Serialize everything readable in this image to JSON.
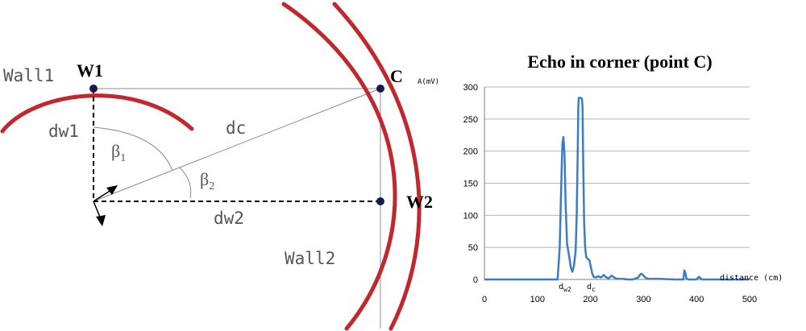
{
  "diagram": {
    "wall1_label": "Wall1",
    "wall2_label": "Wall2",
    "w1_label": "W1",
    "w2_label": "W2",
    "c_label": "C",
    "dw1_label": "dw1",
    "dw2_label": "dw2",
    "dc_label": "dc",
    "beta1_symbol": "β",
    "beta1_sub": "1",
    "beta2_symbol": "β",
    "beta2_sub": "2"
  },
  "chart_data": {
    "type": "line",
    "title": "Echo in corner (point C)",
    "ylabel": "A(mV)",
    "xlabel": "distance (cm)",
    "xlim": [
      0,
      500
    ],
    "ylim": [
      0,
      300
    ],
    "xticks": [
      0,
      100,
      200,
      300,
      400,
      500
    ],
    "yticks": [
      0,
      50,
      100,
      150,
      200,
      250,
      300
    ],
    "grid": "horizontal",
    "color": "#3a7dc4",
    "markers": [
      {
        "letter": "d",
        "sub": "w2"
      },
      {
        "letter": "d",
        "sub": "c"
      }
    ],
    "series": [
      {
        "x": [
          0,
          138,
          142,
          145,
          147,
          149,
          151,
          153,
          156,
          160,
          163,
          166,
          169,
          172,
          174,
          176,
          177,
          178,
          180,
          182,
          184,
          185,
          186,
          188,
          190,
          192,
          195,
          198,
          200,
          203,
          206,
          210,
          215,
          220,
          225,
          230,
          235,
          240,
          245,
          250,
          260,
          270,
          280,
          290,
          293,
          296,
          299,
          302,
          305,
          310,
          330,
          360,
          375,
          377,
          379,
          381,
          385,
          400,
          403,
          405,
          407,
          410,
          420,
          500
        ],
        "y": [
          0,
          0,
          50,
          150,
          210,
          222,
          195,
          120,
          55,
          35,
          18,
          12,
          22,
          45,
          100,
          200,
          268,
          283,
          283,
          283,
          281,
          270,
          200,
          90,
          50,
          35,
          32,
          30,
          22,
          10,
          4,
          3,
          5,
          3,
          7,
          3,
          2,
          6,
          3,
          1,
          1,
          0,
          0,
          3,
          7,
          9,
          7,
          4,
          2,
          1,
          1,
          0,
          0,
          14,
          10,
          1,
          0,
          0,
          3,
          4,
          2,
          0,
          0,
          0
        ]
      }
    ]
  }
}
